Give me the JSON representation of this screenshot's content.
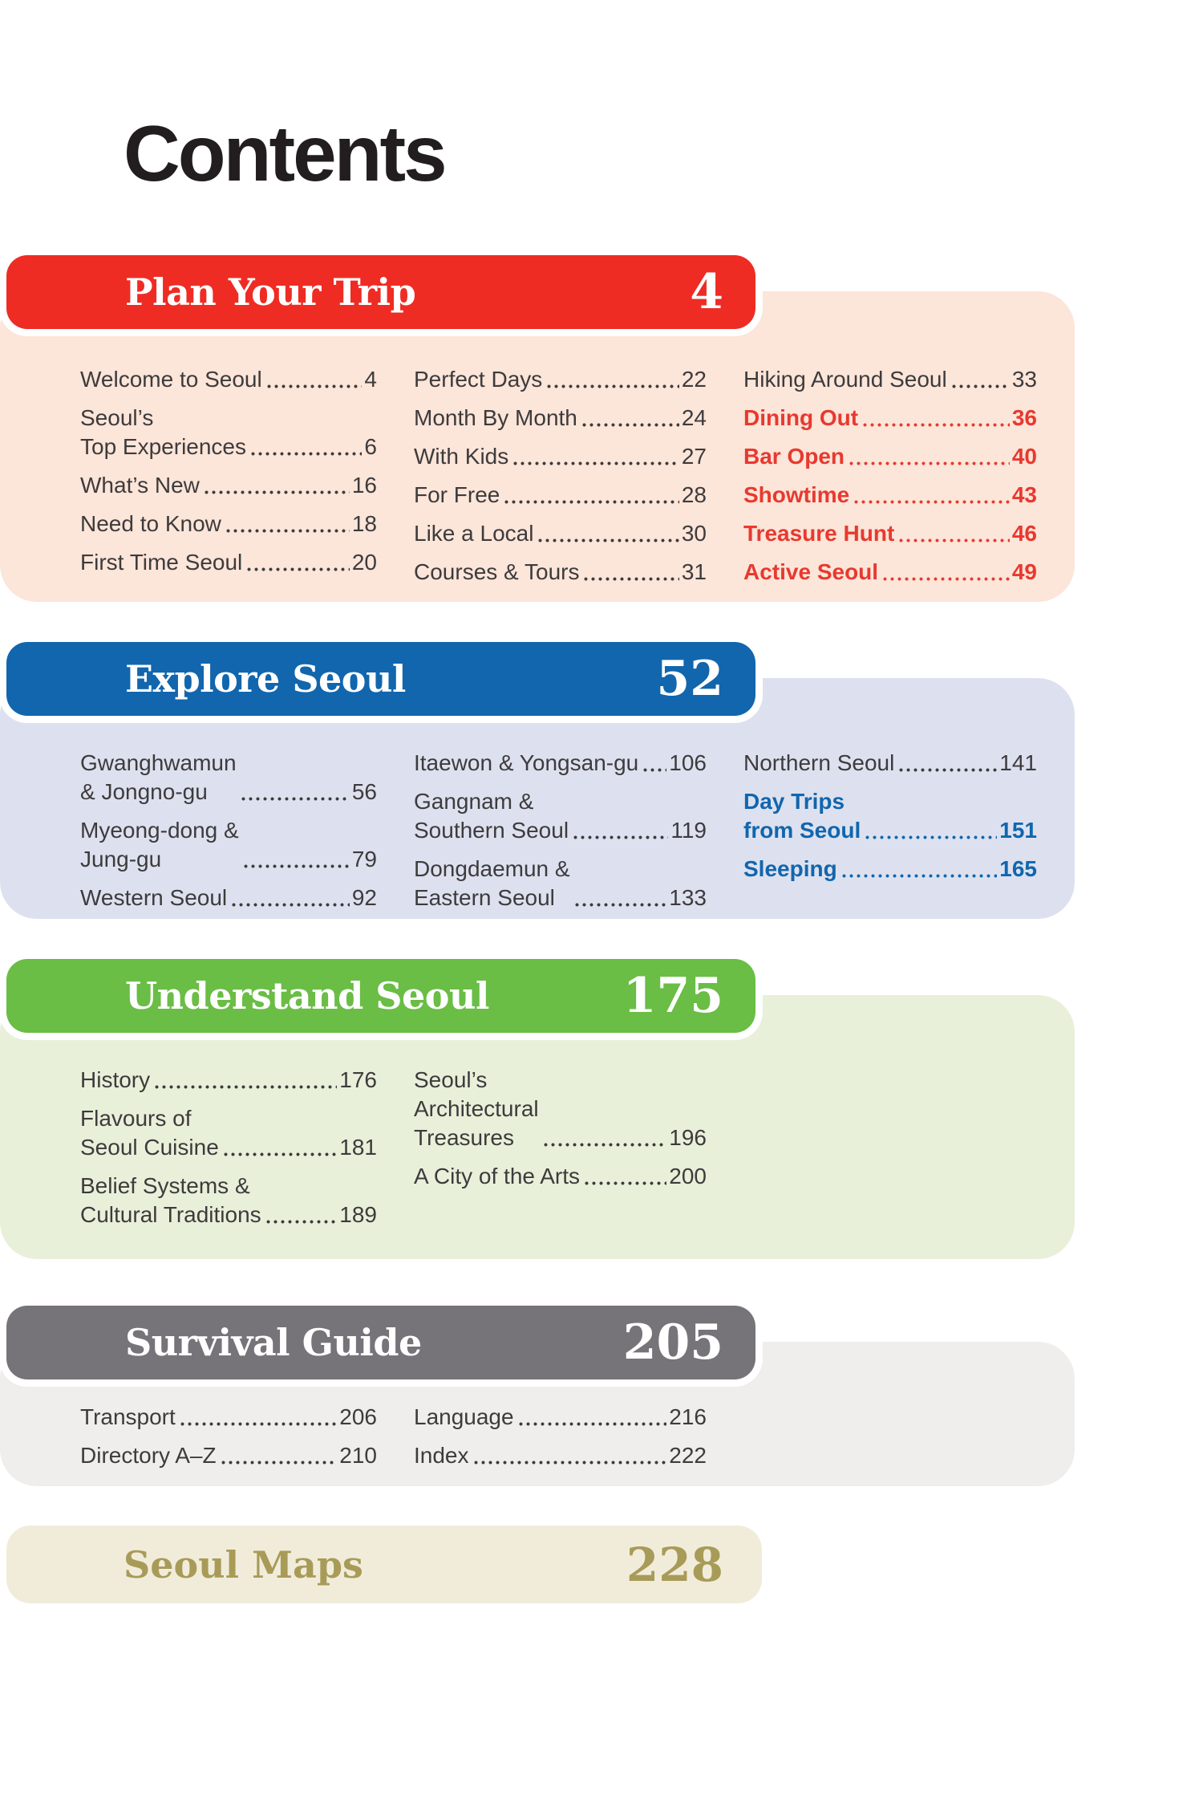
{
  "page_title": "Contents",
  "colors": {
    "body_text": "#3d3b3c",
    "title_text": "#221e1f",
    "plan_header": "#ee2c24",
    "plan_panel": "#fce5d9",
    "plan_accent": "#e8392f",
    "explore_header": "#1166ae",
    "explore_panel": "#dde1ef",
    "explore_accent": "#1166ae",
    "understand_header": "#6abd45",
    "understand_panel": "#e9f0da",
    "survival_header": "#767379",
    "survival_panel": "#efeeec",
    "maps_panel": "#f1ecda",
    "maps_text": "#a89b58"
  },
  "sections": [
    {
      "id": "plan-your-trip",
      "title": "Plan Your Trip",
      "page": "4",
      "header_bg": "#ee2c24",
      "panel_bg": "#fce5d9",
      "accent": "#e8392f",
      "columns": [
        [
          {
            "name": "Welcome to Seoul",
            "page": "4"
          },
          {
            "name": "Seoul’s\nTop Experiences",
            "page": "6"
          },
          {
            "name": "What’s New",
            "page": "16"
          },
          {
            "name": "Need to Know",
            "page": "18"
          },
          {
            "name": "First Time Seoul",
            "page": "20"
          }
        ],
        [
          {
            "name": "Perfect Days",
            "page": "22"
          },
          {
            "name": "Month By Month",
            "page": "24"
          },
          {
            "name": "With Kids",
            "page": "27"
          },
          {
            "name": "For Free",
            "page": "28"
          },
          {
            "name": "Like a Local",
            "page": "30"
          },
          {
            "name": "Courses & Tours",
            "page": "31"
          }
        ],
        [
          {
            "name": "Hiking Around Seoul",
            "page": "33"
          },
          {
            "name": "Dining Out",
            "page": "36",
            "bold": true
          },
          {
            "name": "Bar Open",
            "page": "40",
            "bold": true
          },
          {
            "name": "Showtime",
            "page": "43",
            "bold": true
          },
          {
            "name": "Treasure Hunt",
            "page": "46",
            "bold": true
          },
          {
            "name": "Active Seoul",
            "page": "49",
            "bold": true
          }
        ]
      ]
    },
    {
      "id": "explore-seoul",
      "title": "Explore Seoul",
      "page": "52",
      "header_bg": "#1166ae",
      "panel_bg": "#dde1ef",
      "accent": "#1166ae",
      "columns": [
        [
          {
            "name": "Gwanghwamun\n& Jongno-gu",
            "page": "56"
          },
          {
            "name": "Myeong-dong &\nJung-gu",
            "page": "79"
          },
          {
            "name": "Western Seoul",
            "page": "92"
          }
        ],
        [
          {
            "name": "Itaewon & Yongsan-gu",
            "page": "106"
          },
          {
            "name": "Gangnam &\nSouthern Seoul",
            "page": "119"
          },
          {
            "name": "Dongdaemun &\nEastern Seoul",
            "page": "133"
          }
        ],
        [
          {
            "name": "Northern Seoul",
            "page": "141"
          },
          {
            "name": "Day Trips\nfrom Seoul",
            "page": "151",
            "bold": true
          },
          {
            "name": "Sleeping",
            "page": "165",
            "bold": true
          }
        ]
      ]
    },
    {
      "id": "understand-seoul",
      "title": "Understand Seoul",
      "page": "175",
      "header_bg": "#6abd45",
      "panel_bg": "#e9f0da",
      "accent": "#6abd45",
      "columns": [
        [
          {
            "name": "History",
            "page": "176"
          },
          {
            "name": "Flavours of\nSeoul Cuisine",
            "page": "181"
          },
          {
            "name": "Belief Systems &\nCultural Traditions",
            "page": "189"
          }
        ],
        [
          {
            "name": "Seoul’s\nArchitectural\nTreasures",
            "page": "196"
          },
          {
            "name": "A City of the Arts",
            "page": "200"
          }
        ]
      ]
    },
    {
      "id": "survival-guide",
      "title": "Survival Guide",
      "page": "205",
      "header_bg": "#767379",
      "panel_bg": "#efeeec",
      "accent": "#767379",
      "columns": [
        [
          {
            "name": "Transport",
            "page": "206"
          },
          {
            "name": "Directory A–Z",
            "page": "210"
          }
        ],
        [
          {
            "name": "Language",
            "page": "216"
          },
          {
            "name": "Index",
            "page": "222"
          }
        ]
      ]
    }
  ],
  "maps_section": {
    "id": "seoul-maps",
    "title": "Seoul Maps",
    "page": "228",
    "panel_bg": "#f1ecda",
    "text_color": "#a89b58"
  }
}
